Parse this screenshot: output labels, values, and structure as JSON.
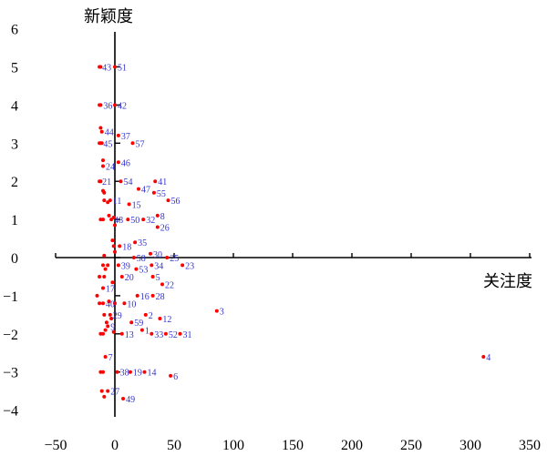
{
  "chart_data": {
    "type": "scatter",
    "title": "",
    "xlabel": "关注度",
    "ylabel": "新颖度",
    "xlim": [
      -50,
      350
    ],
    "ylim": [
      -4,
      6
    ],
    "x_ticks": [
      -50,
      0,
      50,
      100,
      150,
      200,
      250,
      300,
      350
    ],
    "y_ticks": [
      -4,
      -3,
      -2,
      -1,
      0,
      1,
      2,
      3,
      4,
      5,
      6
    ],
    "x_tick_labels": [
      "−50",
      "0",
      "50",
      "100",
      "150",
      "200",
      "250",
      "300",
      "350"
    ],
    "y_tick_labels": [
      "−4",
      "−3",
      "−2",
      "−1",
      "0",
      "1",
      "2",
      "3",
      "4",
      "5",
      "6"
    ],
    "grid": false,
    "marker_color": "#ff0000",
    "label_color": "#3333cc",
    "points": [
      {
        "label": "43",
        "x": -13,
        "y": 5.0
      },
      {
        "label": "51",
        "x": 0,
        "y": 5.0
      },
      {
        "label": "36",
        "x": -12,
        "y": 4.0
      },
      {
        "label": "42",
        "x": 0,
        "y": 4.0
      },
      {
        "label": "44",
        "x": -11,
        "y": 3.3
      },
      {
        "label": "37",
        "x": 3,
        "y": 3.2
      },
      {
        "label": "45",
        "x": -12,
        "y": 3.0
      },
      {
        "label": "57",
        "x": 15,
        "y": 3.0
      },
      {
        "label": "46",
        "x": 3,
        "y": 2.5
      },
      {
        "label": "24",
        "x": -10,
        "y": 2.4
      },
      {
        "label": "21",
        "x": -13,
        "y": 2.0
      },
      {
        "label": "54",
        "x": 5,
        "y": 2.0
      },
      {
        "label": "41",
        "x": 34,
        "y": 2.0
      },
      {
        "label": "47",
        "x": 20,
        "y": 1.8
      },
      {
        "label": "55",
        "x": 33,
        "y": 1.7
      },
      {
        "label": "11",
        "x": -4,
        "y": 1.5
      },
      {
        "label": "15",
        "x": 12,
        "y": 1.4
      },
      {
        "label": "56",
        "x": 45,
        "y": 1.5
      },
      {
        "label": "8",
        "x": 36,
        "y": 1.1
      },
      {
        "label": "48",
        "x": -3,
        "y": 1.0
      },
      {
        "label": "50",
        "x": 11,
        "y": 1.0
      },
      {
        "label": "32",
        "x": 24,
        "y": 1.0
      },
      {
        "label": "26",
        "x": 36,
        "y": 0.8
      },
      {
        "label": "35",
        "x": 17,
        "y": 0.4
      },
      {
        "label": "18",
        "x": 4,
        "y": 0.3
      },
      {
        "label": "30",
        "x": 30,
        "y": 0.1
      },
      {
        "label": "58",
        "x": 16,
        "y": 0.0
      },
      {
        "label": "25",
        "x": 44,
        "y": 0.0
      },
      {
        "label": "34",
        "x": 31,
        "y": -0.2
      },
      {
        "label": "39",
        "x": 3,
        "y": -0.2
      },
      {
        "label": "23",
        "x": 57,
        "y": -0.2
      },
      {
        "label": "53",
        "x": 18,
        "y": -0.3
      },
      {
        "label": "5",
        "x": 32,
        "y": -0.5
      },
      {
        "label": "20",
        "x": 6,
        "y": -0.5
      },
      {
        "label": "22",
        "x": 40,
        "y": -0.7
      },
      {
        "label": "17",
        "x": -10,
        "y": -0.8
      },
      {
        "label": "16",
        "x": 19,
        "y": -1.0
      },
      {
        "label": "28",
        "x": 32,
        "y": -1.0
      },
      {
        "label": "40",
        "x": -10,
        "y": -1.2
      },
      {
        "label": "10",
        "x": 8,
        "y": -1.2
      },
      {
        "label": "3",
        "x": 86,
        "y": -1.4
      },
      {
        "label": "29",
        "x": -4,
        "y": -1.5
      },
      {
        "label": "2",
        "x": 26,
        "y": -1.5
      },
      {
        "label": "12",
        "x": 38,
        "y": -1.6
      },
      {
        "label": "59",
        "x": 14,
        "y": -1.7
      },
      {
        "label": "9",
        "x": -6,
        "y": -1.8
      },
      {
        "label": "1",
        "x": 23,
        "y": -1.9
      },
      {
        "label": "13",
        "x": 6,
        "y": -2.0
      },
      {
        "label": "33",
        "x": 31,
        "y": -2.0
      },
      {
        "label": "52",
        "x": 43,
        "y": -2.0
      },
      {
        "label": "31",
        "x": 55,
        "y": -2.0
      },
      {
        "label": "4",
        "x": 311,
        "y": -2.6
      },
      {
        "label": "7",
        "x": -8,
        "y": -2.6
      },
      {
        "label": "38",
        "x": 2,
        "y": -3.0
      },
      {
        "label": "19",
        "x": 13,
        "y": -3.0
      },
      {
        "label": "14",
        "x": 25,
        "y": -3.0
      },
      {
        "label": "6",
        "x": 47,
        "y": -3.1
      },
      {
        "label": "27",
        "x": -6,
        "y": -3.5
      },
      {
        "label": "49",
        "x": 7,
        "y": -3.7
      }
    ],
    "unlabeled_points": [
      {
        "x": -12,
        "y": 5.0
      },
      {
        "x": -13,
        "y": 4.0
      },
      {
        "x": -12,
        "y": 3.4
      },
      {
        "x": -11,
        "y": 3.0
      },
      {
        "x": -13,
        "y": 3.0
      },
      {
        "x": -10,
        "y": 2.55
      },
      {
        "x": -12,
        "y": 2.0
      },
      {
        "x": -9,
        "y": 1.7
      },
      {
        "x": -10,
        "y": 1.75
      },
      {
        "x": -9,
        "y": 1.5
      },
      {
        "x": -6,
        "y": 1.45
      },
      {
        "x": -12,
        "y": 1.0
      },
      {
        "x": -10,
        "y": 1.0
      },
      {
        "x": -5,
        "y": 1.1
      },
      {
        "x": -1,
        "y": 1.05
      },
      {
        "x": 0,
        "y": 0.85
      },
      {
        "x": -2,
        "y": 0.45
      },
      {
        "x": -1,
        "y": 0.3
      },
      {
        "x": 0,
        "y": 0.15
      },
      {
        "x": -9,
        "y": 0.05
      },
      {
        "x": -10,
        "y": -0.2
      },
      {
        "x": -8,
        "y": -0.3
      },
      {
        "x": -6,
        "y": -0.2
      },
      {
        "x": -13,
        "y": -0.5
      },
      {
        "x": -9,
        "y": -0.5
      },
      {
        "x": -2,
        "y": -0.65
      },
      {
        "x": -15,
        "y": -1.0
      },
      {
        "x": -13,
        "y": -1.2
      },
      {
        "x": -5,
        "y": -1.15
      },
      {
        "x": 0,
        "y": -1.2
      },
      {
        "x": -9,
        "y": -1.5
      },
      {
        "x": -3,
        "y": -1.6
      },
      {
        "x": -7,
        "y": -1.7
      },
      {
        "x": -12,
        "y": -2.0
      },
      {
        "x": -10,
        "y": -2.0
      },
      {
        "x": -8,
        "y": -1.9
      },
      {
        "x": -1,
        "y": -1.95
      },
      {
        "x": -12,
        "y": -3.0
      },
      {
        "x": -10,
        "y": -3.0
      },
      {
        "x": -11,
        "y": -3.5
      },
      {
        "x": -9,
        "y": -3.65
      }
    ]
  }
}
